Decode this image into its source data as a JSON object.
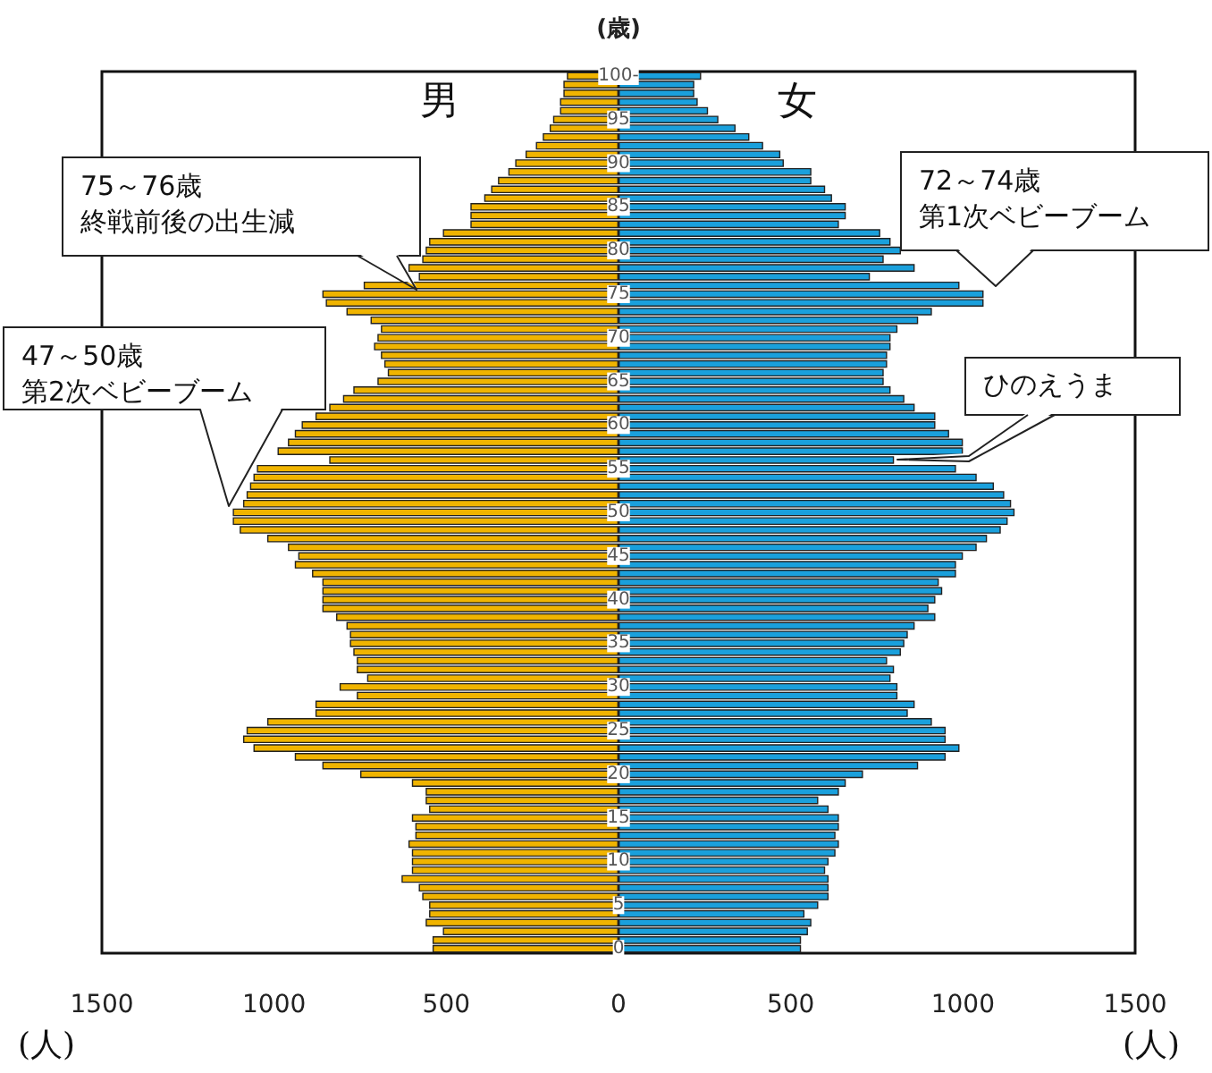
{
  "chart_data": {
    "type": "bar",
    "orientation": "horizontal",
    "ylabel": "(歳)",
    "xlabel": "(人)",
    "categories": [
      "100-",
      null,
      null,
      null,
      null,
      "95",
      null,
      null,
      null,
      null,
      "90",
      null,
      null,
      null,
      null,
      "85",
      null,
      null,
      null,
      null,
      "80",
      null,
      null,
      null,
      null,
      "75",
      null,
      null,
      null,
      null,
      "70",
      null,
      null,
      null,
      null,
      "65",
      null,
      null,
      null,
      null,
      "60",
      null,
      null,
      null,
      null,
      "55",
      null,
      null,
      null,
      null,
      "50",
      null,
      null,
      null,
      null,
      "45",
      null,
      null,
      null,
      null,
      "40",
      null,
      null,
      null,
      null,
      "35",
      null,
      null,
      null,
      null,
      "30",
      null,
      null,
      null,
      null,
      "25",
      null,
      null,
      null,
      null,
      "20",
      null,
      null,
      null,
      null,
      "15",
      null,
      null,
      null,
      null,
      "10",
      null,
      null,
      null,
      null,
      "5",
      null,
      null,
      null,
      null,
      "0"
    ],
    "series": [
      {
        "name": "男",
        "color": "#f0b400",
        "values": [
          -150,
          -160,
          -160,
          -170,
          -170,
          -190,
          -200,
          -220,
          -240,
          -270,
          -300,
          -320,
          -350,
          -370,
          -390,
          -430,
          -430,
          -430,
          -510,
          -550,
          -560,
          -570,
          -610,
          -580,
          -740,
          -860,
          -850,
          -790,
          -720,
          -690,
          -700,
          -710,
          -690,
          -680,
          -670,
          -700,
          -770,
          -800,
          -840,
          -880,
          -920,
          -940,
          -960,
          -990,
          -840,
          -1050,
          -1060,
          -1070,
          -1080,
          -1090,
          -1120,
          -1120,
          -1100,
          -1020,
          -960,
          -930,
          -940,
          -890,
          -860,
          -860,
          -860,
          -860,
          -820,
          -790,
          -780,
          -780,
          -770,
          -760,
          -760,
          -730,
          -810,
          -760,
          -880,
          -880,
          -1020,
          -1080,
          -1090,
          -1060,
          -940,
          -860,
          -750,
          -600,
          -560,
          -560,
          -550,
          -600,
          -590,
          -590,
          -610,
          -600,
          -600,
          -600,
          -630,
          -580,
          -570,
          -550,
          -550,
          -560,
          -510,
          -540,
          -540
        ]
      },
      {
        "name": "女",
        "color": "#1aa0dc",
        "values": [
          240,
          220,
          220,
          230,
          260,
          290,
          340,
          380,
          420,
          470,
          480,
          560,
          560,
          600,
          620,
          660,
          660,
          640,
          760,
          790,
          820,
          770,
          860,
          730,
          990,
          1060,
          1060,
          910,
          870,
          810,
          790,
          790,
          780,
          780,
          770,
          770,
          790,
          830,
          860,
          920,
          920,
          960,
          1000,
          1000,
          800,
          980,
          1040,
          1090,
          1120,
          1140,
          1150,
          1130,
          1110,
          1070,
          1040,
          1000,
          980,
          980,
          930,
          940,
          920,
          900,
          920,
          860,
          840,
          830,
          820,
          780,
          800,
          790,
          810,
          810,
          860,
          840,
          910,
          950,
          950,
          990,
          950,
          870,
          710,
          660,
          640,
          580,
          610,
          640,
          640,
          630,
          640,
          630,
          610,
          600,
          610,
          610,
          610,
          580,
          540,
          560,
          550,
          530,
          530
        ]
      }
    ],
    "xlim": [
      -1500,
      1500
    ],
    "xticks": [
      {
        "value": -1500,
        "label": "1500"
      },
      {
        "value": -1000,
        "label": "1000"
      },
      {
        "value": -500,
        "label": "500"
      },
      0,
      500,
      1000,
      1500
    ],
    "stacked": true,
    "annotations": [
      "75～76歳",
      "終戦前後の出生減",
      "47～50歳",
      "第2次ベビーブーム",
      "72～74歳",
      "第1次ベビーブーム",
      "ひのえうま"
    ]
  }
}
